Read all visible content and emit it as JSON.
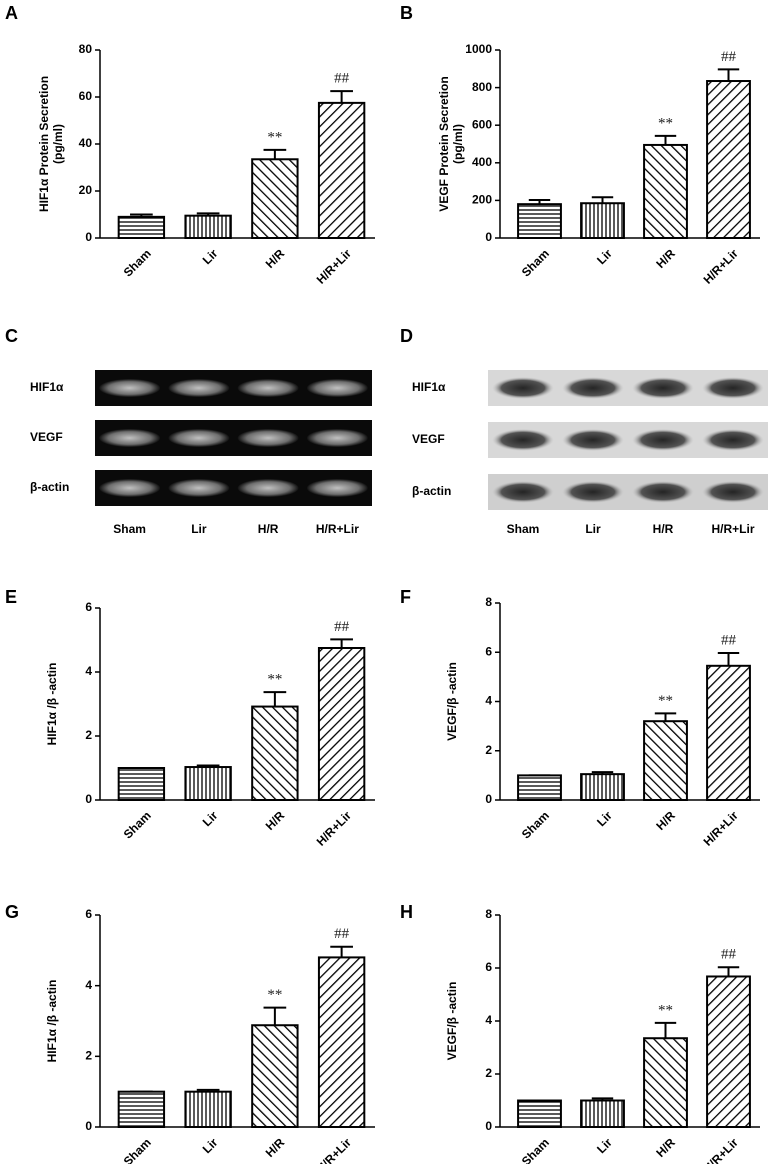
{
  "chart_data": [
    {
      "type": "bar",
      "panel": "A",
      "ylabel": [
        "HIF1α  Protein Secretion",
        "(pg/ml)"
      ],
      "categories": [
        "Sham",
        "Lir",
        "H/R",
        "H/R+Lir"
      ],
      "values": [
        9,
        9.5,
        33.5,
        57.5
      ],
      "errors": [
        1,
        1,
        4,
        5
      ],
      "hatch": [
        "horizontal",
        "vertical",
        "backslash",
        "slash"
      ],
      "annotations": [
        {
          "category": "H/R",
          "text": "**"
        },
        {
          "category": "H/R+Lir",
          "text": "##"
        }
      ],
      "ylim": [
        0,
        80
      ],
      "yticks": [
        0,
        20,
        40,
        60,
        80
      ]
    },
    {
      "type": "bar",
      "panel": "B",
      "ylabel": [
        "VEGF Protein Secretion",
        "(pg/ml)"
      ],
      "categories": [
        "Sham",
        "Lir",
        "H/R",
        "H/R+Lir"
      ],
      "values": [
        180,
        185,
        495,
        835
      ],
      "errors": [
        22,
        32,
        48,
        62
      ],
      "hatch": [
        "horizontal",
        "vertical",
        "backslash",
        "slash"
      ],
      "annotations": [
        {
          "category": "H/R",
          "text": "**"
        },
        {
          "category": "H/R+Lir",
          "text": "##"
        }
      ],
      "ylim": [
        0,
        1000
      ],
      "yticks": [
        0,
        200,
        400,
        600,
        800,
        1000
      ]
    },
    {
      "type": "blot",
      "panel": "C",
      "style": "gel",
      "rows": [
        "HIF1α",
        "VEGF",
        "β-actin"
      ],
      "categories": [
        "Sham",
        "Lir",
        "H/R",
        "H/R+Lir"
      ]
    },
    {
      "type": "blot",
      "panel": "D",
      "style": "western",
      "rows": [
        "HIF1α",
        "VEGF",
        "β-actin"
      ],
      "categories": [
        "Sham",
        "Lir",
        "H/R",
        "H/R+Lir"
      ]
    },
    {
      "type": "bar",
      "panel": "E",
      "ylabel": [
        "HIF1α /β -actin"
      ],
      "categories": [
        "Sham",
        "Lir",
        "H/R",
        "H/R+Lir"
      ],
      "values": [
        1,
        1.03,
        2.92,
        4.75
      ],
      "errors": [
        0,
        0.05,
        0.45,
        0.27
      ],
      "hatch": [
        "horizontal",
        "vertical",
        "backslash",
        "slash"
      ],
      "annotations": [
        {
          "category": "H/R",
          "text": "**"
        },
        {
          "category": "H/R+Lir",
          "text": "##"
        }
      ],
      "ylim": [
        0,
        6
      ],
      "yticks": [
        0,
        2,
        4,
        6
      ]
    },
    {
      "type": "bar",
      "panel": "F",
      "ylabel": [
        "VEGF/β -actin"
      ],
      "categories": [
        "Sham",
        "Lir",
        "H/R",
        "H/R+Lir"
      ],
      "values": [
        1,
        1.05,
        3.2,
        5.45
      ],
      "errors": [
        0,
        0.08,
        0.32,
        0.52
      ],
      "hatch": [
        "horizontal",
        "vertical",
        "backslash",
        "slash"
      ],
      "annotations": [
        {
          "category": "H/R",
          "text": "**"
        },
        {
          "category": "H/R+Lir",
          "text": "##"
        }
      ],
      "ylim": [
        0,
        8
      ],
      "yticks": [
        0,
        2,
        4,
        6,
        8
      ]
    },
    {
      "type": "bar",
      "panel": "G",
      "ylabel": [
        "HIF1α /β -actin"
      ],
      "categories": [
        "Sham",
        "Lir",
        "H/R",
        "H/R+Lir"
      ],
      "values": [
        1,
        1,
        2.88,
        4.8
      ],
      "errors": [
        0,
        0.05,
        0.5,
        0.3
      ],
      "hatch": [
        "horizontal",
        "vertical",
        "backslash",
        "slash"
      ],
      "annotations": [
        {
          "category": "H/R",
          "text": "**"
        },
        {
          "category": "H/R+Lir",
          "text": "##"
        }
      ],
      "ylim": [
        0,
        6
      ],
      "yticks": [
        0,
        2,
        4,
        6
      ]
    },
    {
      "type": "bar",
      "panel": "H",
      "ylabel": [
        "VEGF/β -actin"
      ],
      "categories": [
        "Sham",
        "Lir",
        "H/R",
        "H/R+Lir"
      ],
      "values": [
        1,
        1,
        3.35,
        5.68
      ],
      "errors": [
        0,
        0.08,
        0.58,
        0.35
      ],
      "hatch": [
        "horizontal",
        "vertical",
        "backslash",
        "slash"
      ],
      "annotations": [
        {
          "category": "H/R",
          "text": "**"
        },
        {
          "category": "H/R+Lir",
          "text": "##"
        }
      ],
      "ylim": [
        0,
        8
      ],
      "yticks": [
        0,
        2,
        4,
        6,
        8
      ]
    }
  ]
}
